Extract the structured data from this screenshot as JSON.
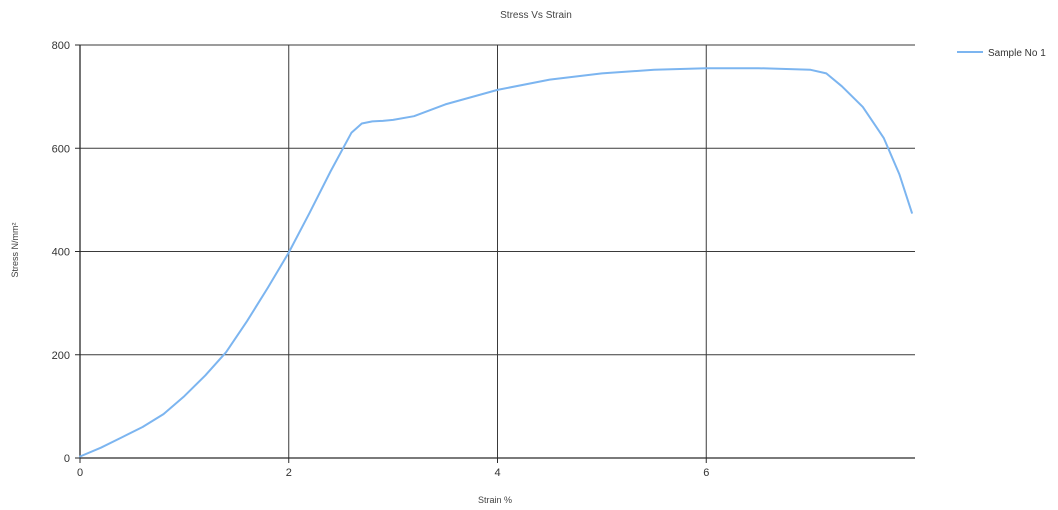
{
  "chart_data": {
    "type": "line",
    "title": "Stress Vs Strain",
    "xlabel": "Strain %",
    "ylabel": "Stress N/mm²",
    "xlim": [
      0,
      8
    ],
    "ylim": [
      0,
      800
    ],
    "x_ticks": [
      0,
      2,
      4,
      6
    ],
    "y_ticks": [
      0,
      200,
      400,
      600,
      800
    ],
    "grid": true,
    "legend_position": "top-right",
    "series": [
      {
        "name": "Sample No 1",
        "color": "#7cb5f0",
        "x": [
          0,
          0.2,
          0.4,
          0.6,
          0.8,
          1.0,
          1.2,
          1.4,
          1.6,
          1.8,
          2.0,
          2.2,
          2.4,
          2.6,
          2.7,
          2.8,
          2.9,
          3.0,
          3.2,
          3.5,
          4.0,
          4.5,
          5.0,
          5.5,
          6.0,
          6.5,
          7.0,
          7.15,
          7.3,
          7.5,
          7.7,
          7.85,
          7.97
        ],
        "values": [
          3,
          20,
          40,
          60,
          85,
          120,
          160,
          205,
          265,
          330,
          398,
          475,
          555,
          630,
          648,
          652,
          653,
          655,
          662,
          685,
          713,
          733,
          745,
          752,
          755,
          755,
          752,
          745,
          720,
          680,
          620,
          550,
          475
        ]
      }
    ]
  }
}
